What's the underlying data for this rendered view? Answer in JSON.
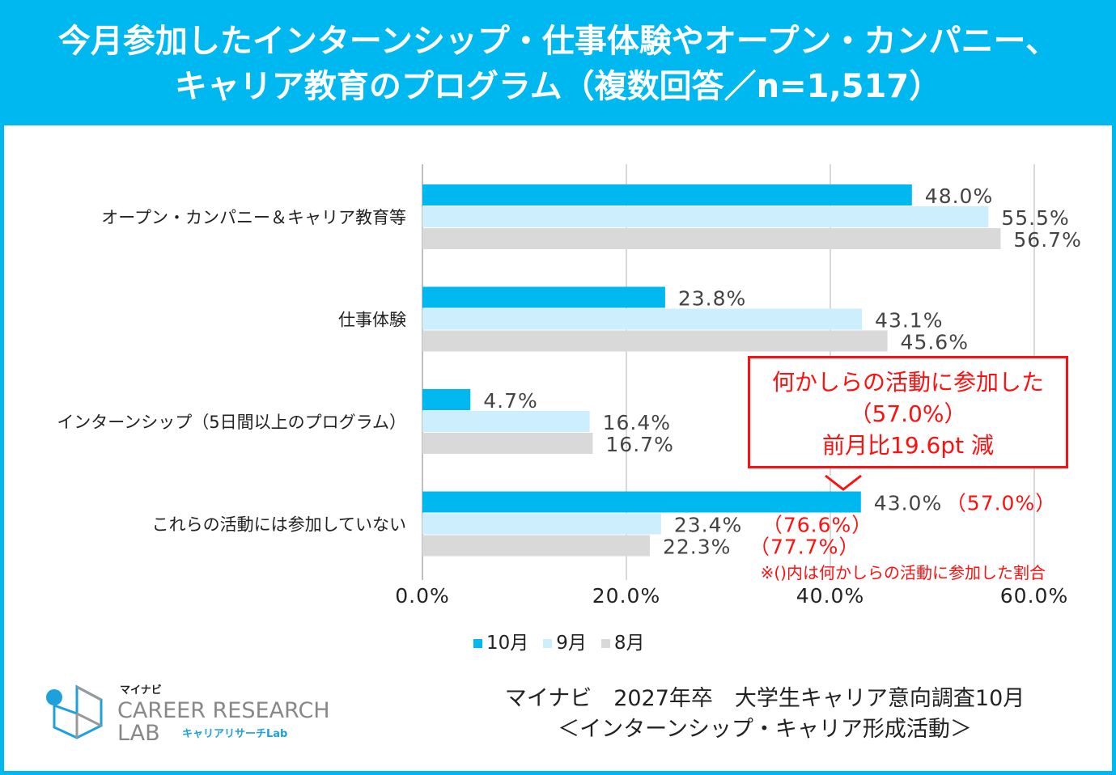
{
  "title": [
    "今月参加したインターンシップ・仕事体験やオープン・カンパニー、",
    "キャリア教育のプログラム（複数回答／n=1,517）"
  ],
  "chart_data": {
    "type": "bar",
    "orientation": "horizontal",
    "categories": [
      "オープン・カンパニー＆キャリア教育等",
      "仕事体験",
      "インターンシップ（5日間以上のプログラム）",
      "これらの活動には参加していない"
    ],
    "series": [
      {
        "name": "10月",
        "color": "#00b8f0",
        "values": [
          48.0,
          23.8,
          4.7,
          43.0
        ],
        "labels": [
          "48.0%",
          "23.8%",
          "4.7%",
          "43.0%"
        ]
      },
      {
        "name": "9月",
        "color": "#cdeefc",
        "values": [
          55.5,
          43.1,
          16.4,
          23.4
        ],
        "labels": [
          "55.5%",
          "43.1%",
          "16.4%",
          "23.4%"
        ]
      },
      {
        "name": "8月",
        "color": "#d9d9d9",
        "values": [
          56.7,
          45.6,
          16.7,
          22.3
        ],
        "labels": [
          "56.7%",
          "45.6%",
          "16.7%",
          "22.3%"
        ]
      }
    ],
    "participation_labels": [
      "（57.0%）",
      "（76.6%）",
      "（77.7%）"
    ],
    "xlim": [
      0,
      60
    ],
    "xticks": [
      "0.0%",
      "20.0%",
      "40.0%",
      "60.0%"
    ],
    "grid": true,
    "legend": "bottom",
    "note": "※()内は何かしらの活動に参加した割合"
  },
  "callout": [
    "何かしらの活動に参加した",
    "（57.0%）",
    "前月比19.6pt 減"
  ],
  "source": [
    "マイナビ　2027年卒　大学生キャリア意向調査10月",
    "＜インターンシップ・キャリア形成活動＞"
  ],
  "logo": {
    "brand": "マイナビ",
    "line1": "CAREER RESEARCH",
    "line2": "LAB",
    "sub": "キャリアリサーチLab"
  }
}
